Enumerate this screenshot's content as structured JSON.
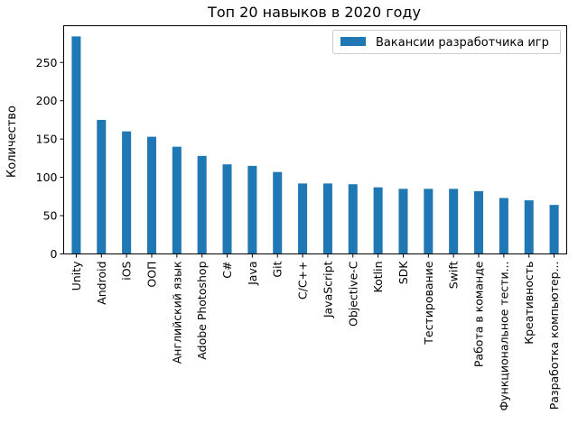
{
  "chart_data": {
    "type": "bar",
    "title": "Топ 20 навыков в 2020 году",
    "xlabel": "",
    "ylabel": "Количество",
    "categories": [
      "Unity",
      "Android",
      "iOS",
      "ООП",
      "Английский язык",
      "Adobe Photoshop",
      "C#",
      "Java",
      "Git",
      "C/C++",
      "JavaScript",
      "Objective-C",
      "Kotlin",
      "SDK",
      "Тестирование",
      "Swift",
      "Работа в команде",
      "Функциональное тести...",
      "Креативность",
      "Разработка компьютер..."
    ],
    "series": [
      {
        "name": "Вакансии разработчика игр",
        "values": [
          284,
          175,
          160,
          153,
          140,
          128,
          117,
          115,
          107,
          92,
          92,
          91,
          87,
          85,
          85,
          85,
          82,
          73,
          70,
          64
        ]
      }
    ],
    "ylim": [
      0,
      298
    ],
    "yticks": [
      0,
      50,
      100,
      150,
      200,
      250
    ],
    "legend_position": "top-right",
    "grid": false,
    "colors": {
      "bar": "#1f77b4"
    }
  }
}
